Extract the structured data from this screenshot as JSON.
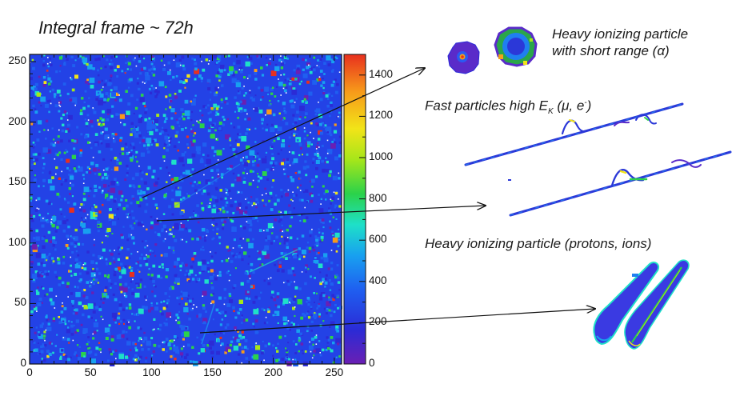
{
  "title": "Integral frame ~ 72h",
  "heatmap": {
    "xlim": [
      0,
      256
    ],
    "ylim": [
      0,
      256
    ],
    "x_ticks": [
      "0",
      "50",
      "100",
      "150",
      "200",
      "250"
    ],
    "y_ticks": [
      "0",
      "50",
      "100",
      "150",
      "200",
      "250"
    ],
    "colorbar_range": [
      0,
      1500
    ],
    "colorbar_ticks": [
      "0",
      "200",
      "400",
      "600",
      "800",
      "1000",
      "1200",
      "1400"
    ],
    "palette": [
      "#6a1fb3",
      "#2b2bd6",
      "#1f5ff0",
      "#18a0f0",
      "#1ee0c8",
      "#2bd24a",
      "#a6e61a",
      "#f2e418",
      "#f79a1a",
      "#e8301e"
    ]
  },
  "annotations": {
    "alpha": {
      "line1": "Heavy ionizing particle",
      "line2": "with short range (α)"
    },
    "fast": {
      "prefix": "Fast particles high E",
      "subscript": "K",
      "suffix": " (μ, e",
      "superscript": "-",
      "end": ")"
    },
    "heavy": {
      "text": "Heavy ionizing particle (protons, ions)"
    }
  }
}
